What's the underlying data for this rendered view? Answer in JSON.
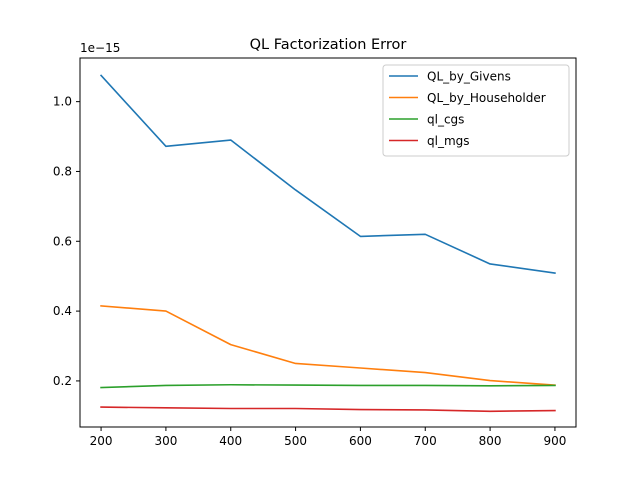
{
  "chart_data": {
    "type": "line",
    "title": "QL Factorization Error",
    "xlabel": "",
    "ylabel": "",
    "y_offset_label": "1e−15",
    "x": [
      200,
      300,
      400,
      500,
      600,
      700,
      800,
      900
    ],
    "xlim": [
      167.5,
      932.5
    ],
    "ylim": [
      0.068,
      1.125
    ],
    "x_ticks": [
      200,
      300,
      400,
      500,
      600,
      700,
      800,
      900
    ],
    "y_ticks": [
      0.2,
      0.4,
      0.6,
      0.8,
      1.0
    ],
    "y_tick_labels": [
      "0.2",
      "0.4",
      "0.6",
      "0.8",
      "1.0"
    ],
    "grid": false,
    "legend_position": "top-right",
    "series": [
      {
        "name": "QL_by_Givens",
        "color": "#1f77b4",
        "values": [
          1.075,
          0.872,
          0.89,
          0.747,
          0.614,
          0.62,
          0.535,
          0.509
        ]
      },
      {
        "name": "QL_by_Householder",
        "color": "#ff7f0e",
        "values": [
          0.415,
          0.4,
          0.304,
          0.25,
          0.237,
          0.224,
          0.201,
          0.188
        ]
      },
      {
        "name": "ql_cgs",
        "color": "#2ca02c",
        "values": [
          0.181,
          0.187,
          0.189,
          0.188,
          0.187,
          0.187,
          0.186,
          0.187
        ]
      },
      {
        "name": "ql_mgs",
        "color": "#d62728",
        "values": [
          0.125,
          0.123,
          0.121,
          0.121,
          0.118,
          0.117,
          0.113,
          0.115
        ]
      }
    ]
  }
}
